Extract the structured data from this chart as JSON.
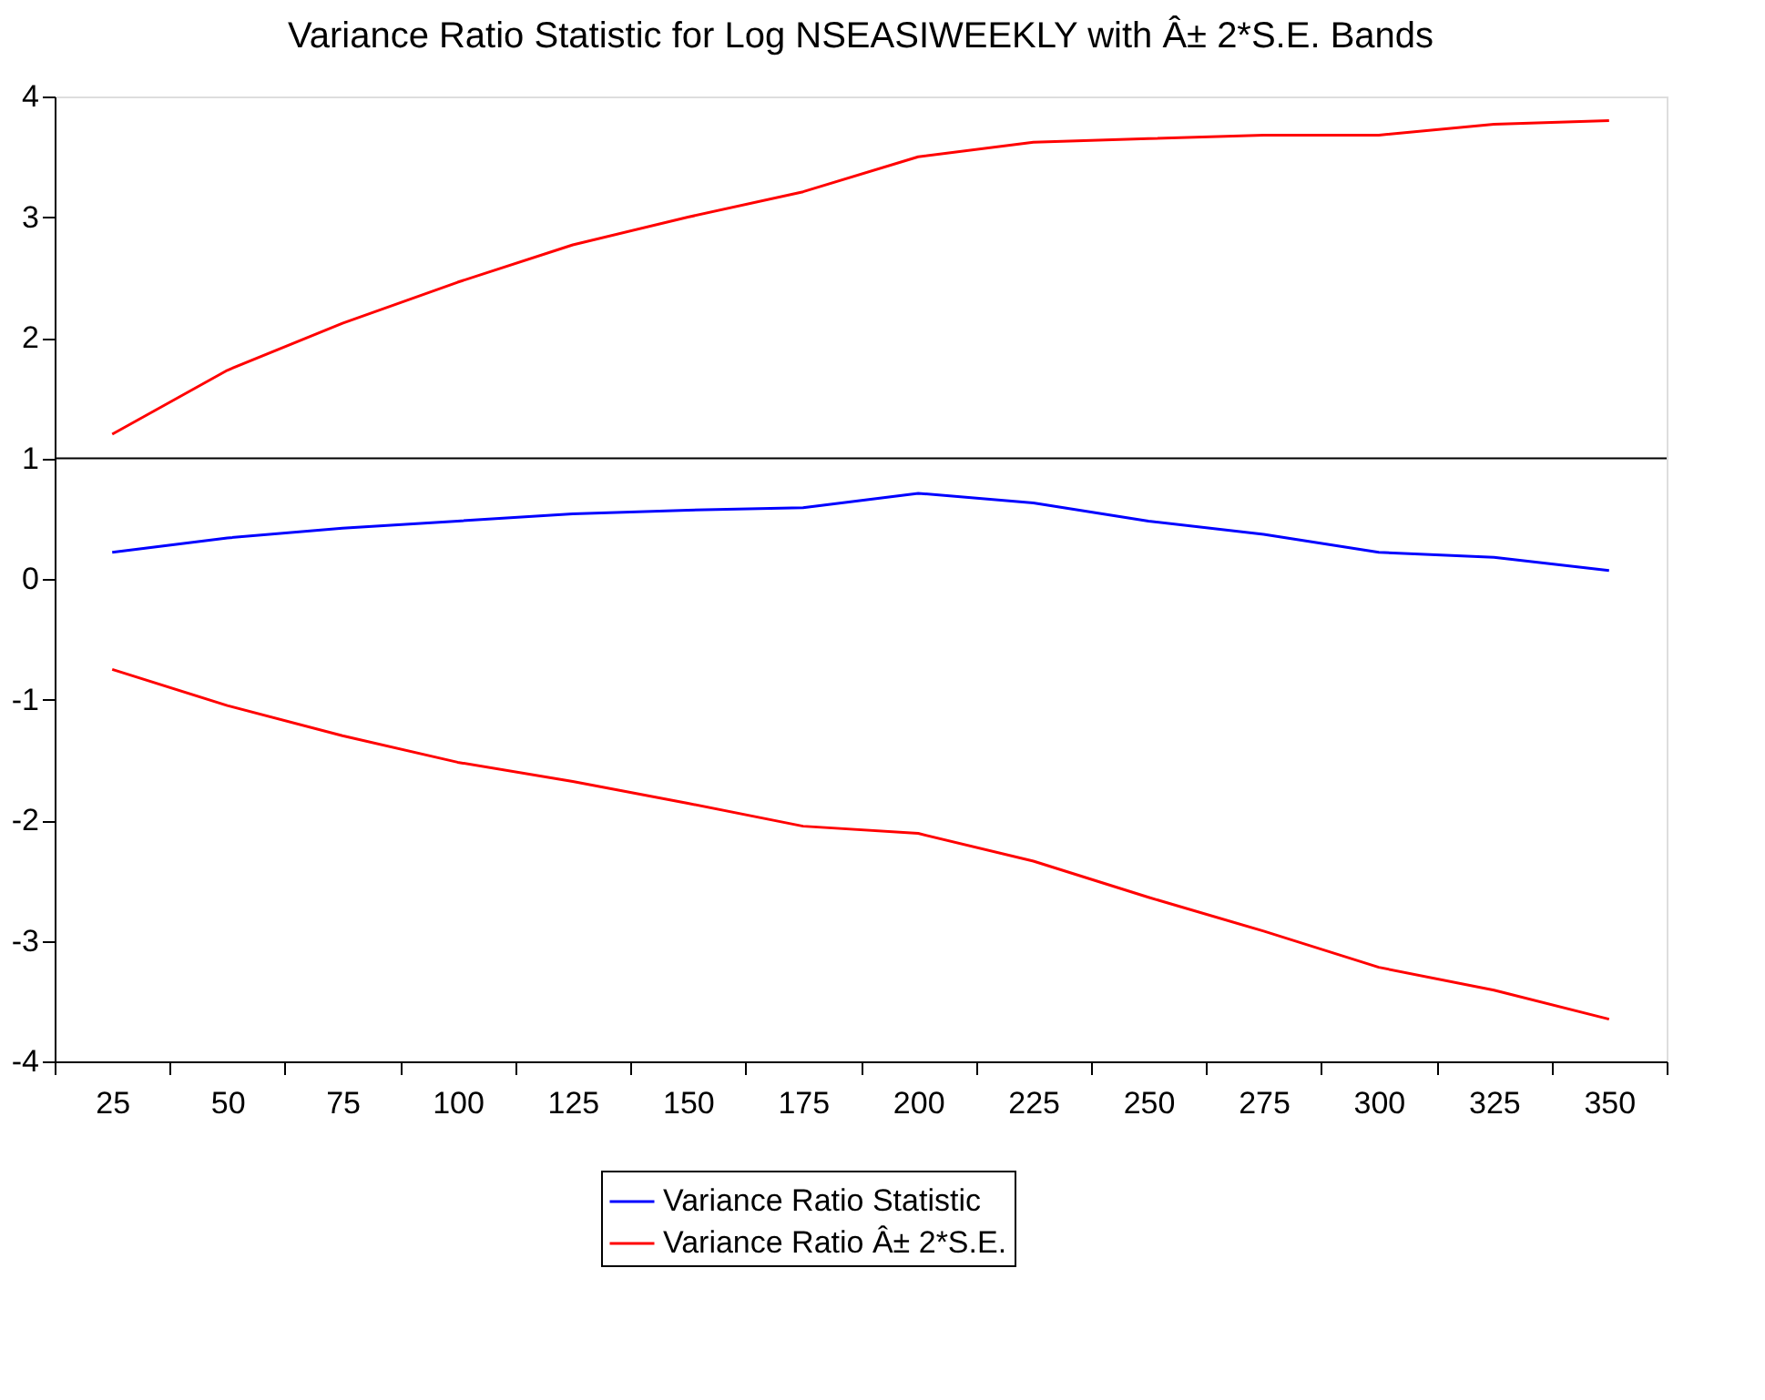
{
  "chart_data": {
    "type": "line",
    "title": "Variance Ratio Statistic for Log NSEASIWEEKLY with Â± 2*S.E. Bands",
    "categories": [
      "25",
      "50",
      "75",
      "100",
      "125",
      "150",
      "175",
      "200",
      "225",
      "250",
      "275",
      "300",
      "325",
      "350"
    ],
    "series": [
      {
        "name": "Variance Ratio Statistic",
        "color": "#0000ff",
        "values": [
          0.22,
          0.34,
          0.42,
          0.48,
          0.54,
          0.57,
          0.59,
          0.71,
          0.63,
          0.48,
          0.37,
          0.22,
          0.18,
          0.07
        ]
      },
      {
        "name": "Variance Ratio Â± 2*S.E.",
        "color": "#ff0000",
        "values": [
          1.2,
          1.73,
          2.12,
          2.46,
          2.77,
          3.0,
          3.21,
          3.5,
          3.62,
          3.65,
          3.68,
          3.68,
          3.77,
          3.8
        ]
      },
      {
        "color": "#ff0000",
        "values": [
          -0.75,
          -1.05,
          -1.3,
          -1.52,
          -1.68,
          -1.86,
          -2.05,
          -2.11,
          -2.34,
          -2.64,
          -2.92,
          -3.22,
          -3.41,
          -3.65
        ]
      }
    ],
    "ylim": [
      -4,
      4
    ],
    "yticks": [
      -4,
      -3,
      -2,
      -1,
      0,
      1,
      2,
      3,
      4
    ],
    "ref_lines": [
      {
        "axis": "y",
        "value": 1,
        "color": "#000000"
      }
    ],
    "grid": false,
    "legend": "bottom"
  }
}
